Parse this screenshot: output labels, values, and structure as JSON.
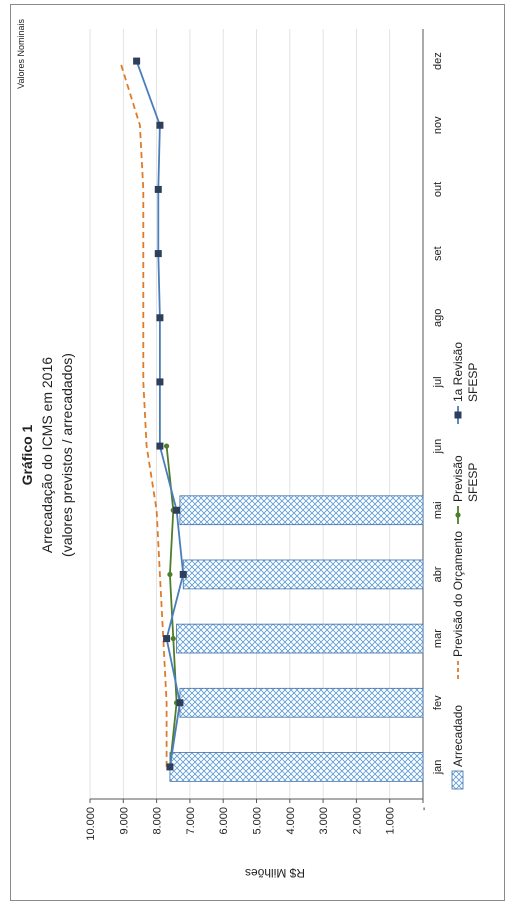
{
  "chart_data": {
    "type": "bar",
    "title": "Gráfico 1",
    "subtitle_line1": "Arrecadação do ICMS em 2016",
    "subtitle_line2": "(valores previstos / arrecadados)",
    "corner_note": "Valores Nominais",
    "ylabel": "R$ Milhões",
    "ylim": [
      0,
      10000
    ],
    "yticks": [
      0,
      1000,
      2000,
      3000,
      4000,
      5000,
      6000,
      7000,
      8000,
      9000,
      10000
    ],
    "ytick_labels": [
      "-",
      "1.000",
      "2.000",
      "3.000",
      "4.000",
      "5.000",
      "6.000",
      "7.000",
      "8.000",
      "9.000",
      "10.000"
    ],
    "categories": [
      "jan",
      "fev",
      "mar",
      "abr",
      "mai",
      "jun",
      "jul",
      "ago",
      "set",
      "out",
      "nov",
      "dez"
    ],
    "series": [
      {
        "name": "Arrecadado",
        "kind": "bar",
        "color": "#5b9bd5",
        "values": [
          7600,
          7300,
          7400,
          7200,
          7300,
          null,
          null,
          null,
          null,
          null,
          null,
          null
        ]
      },
      {
        "name": "Previsão do Orçamento",
        "kind": "dashed-line",
        "color": "#e07b28",
        "values": [
          7700,
          7700,
          7800,
          7900,
          8000,
          8300,
          8400,
          8400,
          8400,
          8400,
          8500,
          9100
        ]
      },
      {
        "name": "Previsão SFESP",
        "kind": "line",
        "color": "#4e7d2c",
        "values": [
          7600,
          7400,
          7500,
          7600,
          7500,
          7700,
          null,
          null,
          null,
          null,
          null,
          null
        ]
      },
      {
        "name": "1a Revisão SFESP",
        "kind": "line-square",
        "color": "#4a7ebb",
        "marker_color": "#2f3e5a",
        "values": [
          7600,
          7300,
          7700,
          7200,
          7400,
          7900,
          7900,
          7900,
          7950,
          7950,
          7900,
          8600
        ]
      }
    ],
    "legend_position": "bottom",
    "grid": true
  }
}
